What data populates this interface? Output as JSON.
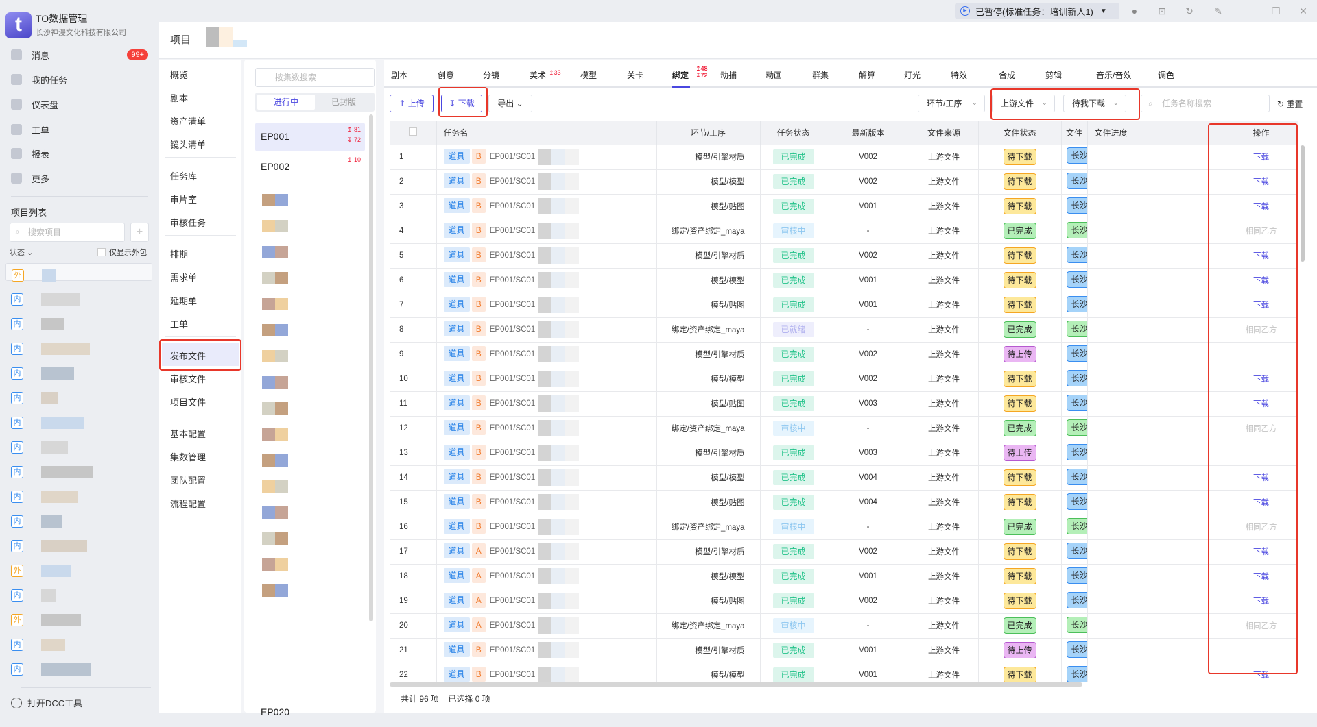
{
  "app": {
    "title": "TO数据管理",
    "company": "长沙神漫文化科技有限公司",
    "logo_letter": "t"
  },
  "topbar": {
    "run_status": "已暂停(标准任务：培训新人1)"
  },
  "nav": [
    {
      "label": "消息",
      "icon": "message-icon",
      "badge": "99+"
    },
    {
      "label": "我的任务",
      "icon": "check-icon"
    },
    {
      "label": "仪表盘",
      "icon": "dashboard-icon"
    },
    {
      "label": "工单",
      "icon": "ticket-icon"
    },
    {
      "label": "报表",
      "icon": "chart-icon"
    },
    {
      "label": "更多",
      "icon": "more-icon"
    }
  ],
  "projects": {
    "title": "项目列表",
    "search_placeholder": "搜索项目",
    "status_label": "状态",
    "outsource_only": "仅显示外包",
    "badges": [
      "外",
      "内",
      "内",
      "内",
      "内",
      "内",
      "内",
      "内",
      "内",
      "内",
      "内",
      "内",
      "外",
      "内",
      "外",
      "内",
      "内"
    ]
  },
  "dcc": "打开DCC工具",
  "header": {
    "title": "项目"
  },
  "menu": [
    [
      "概览",
      "剧本",
      "资产清单",
      "镜头清单"
    ],
    [
      "任务库",
      "审片室",
      "审核任务"
    ],
    [
      "排期",
      "需求单",
      "延期单",
      "工单"
    ],
    [
      "发布文件",
      "审核文件",
      "项目文件"
    ],
    [
      "基本配置",
      "集数管理",
      "团队配置",
      "流程配置"
    ]
  ],
  "menu_active": "发布文件",
  "episodes": {
    "search_placeholder": "按集数搜索",
    "tabs": [
      "进行中",
      "已封版"
    ],
    "items": [
      {
        "name": "EP001",
        "up": "81",
        "down": "72"
      },
      {
        "name": "EP002",
        "up": "10"
      }
    ],
    "last": "EP020"
  },
  "tabs": [
    {
      "label": "剧本"
    },
    {
      "label": "创意"
    },
    {
      "label": "分镜"
    },
    {
      "label": "美术",
      "up": "33"
    },
    {
      "label": "模型"
    },
    {
      "label": "关卡"
    },
    {
      "label": "绑定",
      "up": "48",
      "down": "72",
      "active": true
    },
    {
      "label": "动捕"
    },
    {
      "label": "动画"
    },
    {
      "label": "群集"
    },
    {
      "label": "解算"
    },
    {
      "label": "灯光"
    },
    {
      "label": "特效"
    },
    {
      "label": "合成"
    },
    {
      "label": "剪辑"
    },
    {
      "label": "音乐/音效"
    },
    {
      "label": "调色"
    }
  ],
  "toolbar": {
    "upload": "上传",
    "download": "下载",
    "export": "导出",
    "filter_stage": "环节/工序",
    "filter_source": "上游文件",
    "filter_mine": "待我下载",
    "search_placeholder": "任务名称搜索",
    "reset": "重置"
  },
  "table": {
    "headers": [
      "任务名",
      "环节/工序",
      "任务状态",
      "最新版本",
      "文件来源",
      "文件状态",
      "文件",
      "文件进度",
      "操作"
    ],
    "rows": [
      [
        "1",
        "道具",
        "B",
        "EP001/SC01",
        "模型/引擎材质",
        "已完成",
        "V002",
        "上游文件",
        "待下载",
        "长沙",
        "下载"
      ],
      [
        "2",
        "道具",
        "B",
        "EP001/SC01",
        "模型/模型",
        "已完成",
        "V002",
        "上游文件",
        "待下载",
        "长沙",
        "下载"
      ],
      [
        "3",
        "道具",
        "B",
        "EP001/SC01",
        "模型/贴图",
        "已完成",
        "V001",
        "上游文件",
        "待下载",
        "长沙",
        "下载"
      ],
      [
        "4",
        "道具",
        "B",
        "EP001/SC01",
        "绑定/资产绑定_maya",
        "审核中",
        "-",
        "上游文件",
        "已完成",
        "长沙",
        "相同乙方"
      ],
      [
        "5",
        "道具",
        "B",
        "EP001/SC01",
        "模型/引擎材质",
        "已完成",
        "V002",
        "上游文件",
        "待下载",
        "长沙",
        "下载"
      ],
      [
        "6",
        "道具",
        "B",
        "EP001/SC01",
        "模型/模型",
        "已完成",
        "V001",
        "上游文件",
        "待下载",
        "长沙",
        "下载"
      ],
      [
        "7",
        "道具",
        "B",
        "EP001/SC01",
        "模型/贴图",
        "已完成",
        "V001",
        "上游文件",
        "待下载",
        "长沙",
        "下载"
      ],
      [
        "8",
        "道具",
        "B",
        "EP001/SC01",
        "绑定/资产绑定_maya",
        "已就绪",
        "-",
        "上游文件",
        "已完成",
        "长沙",
        "相同乙方"
      ],
      [
        "9",
        "道具",
        "B",
        "EP001/SC01",
        "模型/引擎材质",
        "已完成",
        "V002",
        "上游文件",
        "待上传",
        "长沙",
        ""
      ],
      [
        "10",
        "道具",
        "B",
        "EP001/SC01",
        "模型/模型",
        "已完成",
        "V002",
        "上游文件",
        "待下载",
        "长沙",
        "下载"
      ],
      [
        "11",
        "道具",
        "B",
        "EP001/SC01",
        "模型/贴图",
        "已完成",
        "V003",
        "上游文件",
        "待下载",
        "长沙",
        "下载"
      ],
      [
        "12",
        "道具",
        "B",
        "EP001/SC01",
        "绑定/资产绑定_maya",
        "审核中",
        "-",
        "上游文件",
        "已完成",
        "长沙",
        "相同乙方"
      ],
      [
        "13",
        "道具",
        "B",
        "EP001/SC01",
        "模型/引擎材质",
        "已完成",
        "V003",
        "上游文件",
        "待上传",
        "长沙",
        ""
      ],
      [
        "14",
        "道具",
        "B",
        "EP001/SC01",
        "模型/模型",
        "已完成",
        "V004",
        "上游文件",
        "待下载",
        "长沙",
        "下载"
      ],
      [
        "15",
        "道具",
        "B",
        "EP001/SC01",
        "模型/贴图",
        "已完成",
        "V004",
        "上游文件",
        "待下载",
        "长沙",
        "下载"
      ],
      [
        "16",
        "道具",
        "B",
        "EP001/SC01",
        "绑定/资产绑定_maya",
        "审核中",
        "-",
        "上游文件",
        "已完成",
        "长沙",
        "相同乙方"
      ],
      [
        "17",
        "道具",
        "A",
        "EP001/SC01",
        "模型/引擎材质",
        "已完成",
        "V002",
        "上游文件",
        "待下载",
        "长沙",
        "下载"
      ],
      [
        "18",
        "道具",
        "A",
        "EP001/SC01",
        "模型/模型",
        "已完成",
        "V001",
        "上游文件",
        "待下载",
        "长沙",
        "下载"
      ],
      [
        "19",
        "道具",
        "A",
        "EP001/SC01",
        "模型/贴图",
        "已完成",
        "V002",
        "上游文件",
        "待下载",
        "长沙",
        "下载"
      ],
      [
        "20",
        "道具",
        "A",
        "EP001/SC01",
        "绑定/资产绑定_maya",
        "审核中",
        "-",
        "上游文件",
        "已完成",
        "长沙",
        "相同乙方"
      ],
      [
        "21",
        "道具",
        "B",
        "EP001/SC01",
        "模型/引擎材质",
        "已完成",
        "V001",
        "上游文件",
        "待上传",
        "长沙",
        ""
      ],
      [
        "22",
        "道具",
        "B",
        "EP001/SC01",
        "模型/模型",
        "已完成",
        "V001",
        "上游文件",
        "待下载",
        "长沙",
        "下载"
      ]
    ]
  },
  "footer": {
    "total": "共计 96 项",
    "selected": "已选择 0 项"
  },
  "colors": {
    "accent": "#4a47e0",
    "highlight_box": "#e8372a",
    "done": "#23c38a",
    "badge_red": "#f5403a"
  }
}
